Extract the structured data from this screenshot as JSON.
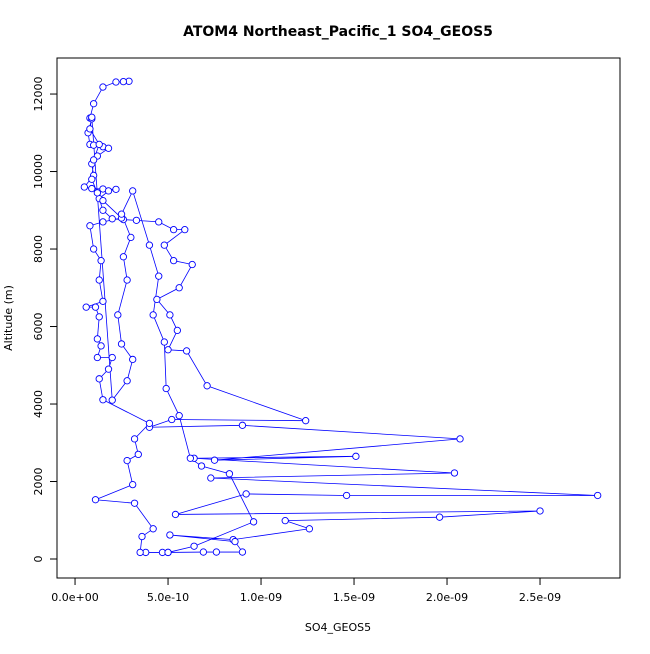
{
  "chart_data": {
    "type": "line",
    "title": "ATOM4 Northeast_Pacific_1 SO4_GEOS5",
    "x_label": "SO4_GEOS5",
    "y_label": "Altitude (m)",
    "color": "#0000ff",
    "markers": "open-circle",
    "xlim": [
      -9.7e-11,
      2.93e-09
    ],
    "ylim": [
      -490,
      12930
    ],
    "xticks": [
      {
        "value": 0,
        "label": "0.0e+00"
      },
      {
        "value": 5e-10,
        "label": "5.0e-10"
      },
      {
        "value": 1e-09,
        "label": "1.0e-09"
      },
      {
        "value": 1.5e-09,
        "label": "1.5e-09"
      },
      {
        "value": 2e-09,
        "label": "2.0e-09"
      },
      {
        "value": 2.5e-09,
        "label": "2.5e-09"
      }
    ],
    "yticks": [
      0,
      2000,
      4000,
      6000,
      8000,
      10000,
      12000
    ],
    "x": [
      2.9e-10,
      2.6e-10,
      2.2e-10,
      1.5e-10,
      1e-10,
      8e-11,
      9e-11,
      7e-11,
      8e-11,
      1e-10,
      1.5e-10,
      1.8e-10,
      1.2e-10,
      9e-11,
      1e-10,
      5e-11,
      9e-11,
      1.5e-10,
      2.2e-10,
      1.8e-10,
      1.3e-10,
      1.5e-10,
      2e-10,
      2.6e-10,
      3.3e-10,
      4.5e-10,
      5.3e-10,
      5.9e-10,
      4.8e-10,
      5.3e-10,
      6.3e-10,
      5.6e-10,
      4.4e-10,
      5.1e-10,
      5.5e-10,
      5e-10,
      6e-10,
      7.1e-10,
      1.24e-09,
      5.2e-10,
      4e-10,
      9e-10,
      2.07e-09,
      7.5e-10,
      1.51e-09,
      6.4e-10,
      2.04e-09,
      7.3e-10,
      2.81e-09,
      1.46e-09,
      9.2e-10,
      5.4e-10,
      2.5e-09,
      1.96e-09,
      1.13e-09,
      1.26e-09,
      8.5e-10,
      5.1e-10,
      8.6e-10,
      9e-10,
      7.6e-10,
      6.9e-10,
      5e-10,
      4.7e-10,
      3.8e-10,
      3.5e-10,
      3.6e-10,
      4.2e-10,
      3.2e-10,
      1.1e-10,
      3.1e-10,
      2.8e-10,
      3.4e-10,
      3.2e-10,
      4e-10,
      1.5e-10,
      1.3e-10,
      1.8e-10,
      2e-10,
      1.2e-10,
      1.4e-10,
      1.2e-10,
      1.3e-10,
      1.1e-10,
      6e-11,
      1.5e-10,
      1.3e-10,
      1.4e-10,
      1e-10,
      8e-11,
      1.5e-10,
      2.5e-10,
      1.5e-10,
      1.2e-10,
      9e-11,
      1e-10,
      1.3e-10,
      8e-11,
      9e-11,
      2e-10,
      2.8e-10,
      3.1e-10,
      2.5e-10,
      2.3e-10,
      2.8e-10,
      2.6e-10,
      3e-10,
      2.5e-10,
      3.1e-10,
      4e-10,
      4.5e-10,
      4.2e-10,
      4.8e-10,
      4.9e-10,
      5.6e-10,
      6.2e-10,
      6.8e-10,
      8.3e-10,
      9.6e-10,
      6.4e-10,
      5e-10
    ],
    "values": [
      12330,
      12320,
      12310,
      12180,
      11750,
      11380,
      11360,
      11000,
      10700,
      10680,
      10640,
      10600,
      10400,
      10200,
      9900,
      9600,
      9560,
      9550,
      9540,
      9500,
      9300,
      9000,
      8780,
      8760,
      8740,
      8700,
      8500,
      8500,
      8100,
      7700,
      7600,
      7000,
      6700,
      6300,
      5900,
      5400,
      5370,
      4470,
      3570,
      3600,
      3400,
      3450,
      3100,
      2550,
      2650,
      2600,
      2220,
      2090,
      1640,
      1640,
      1680,
      1150,
      1240,
      1080,
      990,
      780,
      500,
      620,
      450,
      180,
      180,
      180,
      170,
      170,
      170,
      170,
      580,
      780,
      1440,
      1530,
      1920,
      2540,
      2700,
      3100,
      3500,
      4110,
      4650,
      4900,
      5200,
      5200,
      5500,
      5680,
      6250,
      6500,
      6500,
      6650,
      7200,
      7700,
      8000,
      8600,
      8700,
      8800,
      9250,
      9450,
      9800,
      10300,
      10700,
      11100,
      11400,
      4100,
      4600,
      5150,
      5550,
      6300,
      7200,
      7800,
      8300,
      8900,
      9500,
      8100,
      7300,
      6300,
      5600,
      4400,
      3700,
      2600,
      2400,
      2200,
      960,
      330,
      170
    ]
  }
}
